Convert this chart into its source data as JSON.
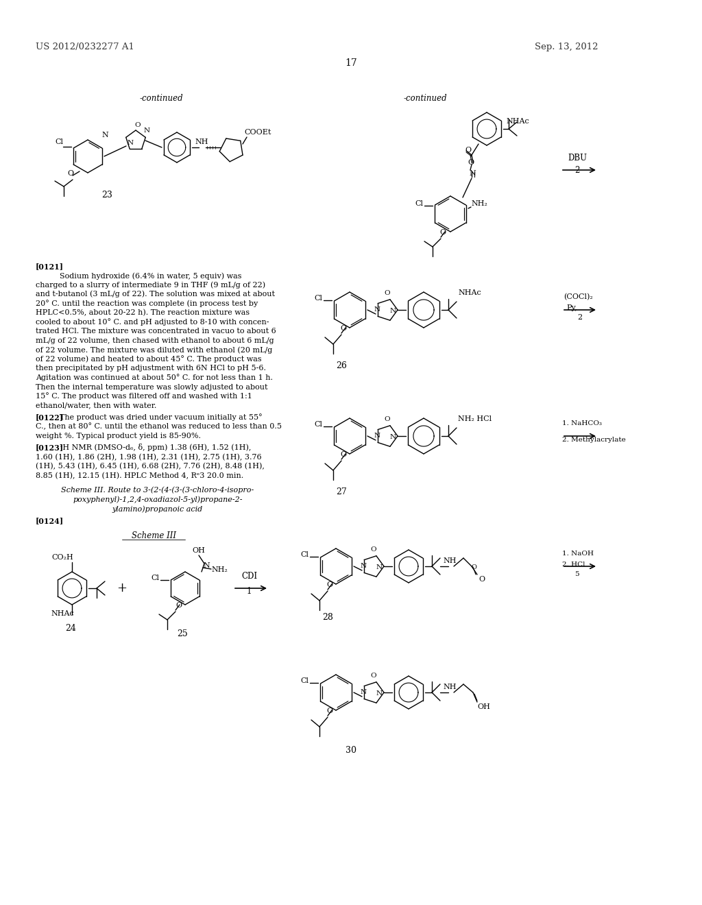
{
  "bg_color": "#ffffff",
  "page_number": "17",
  "patent_left": "US 2012/0232277 A1",
  "patent_right": "Sep. 13, 2012",
  "figsize": [
    10.24,
    13.2
  ],
  "dpi": 100
}
